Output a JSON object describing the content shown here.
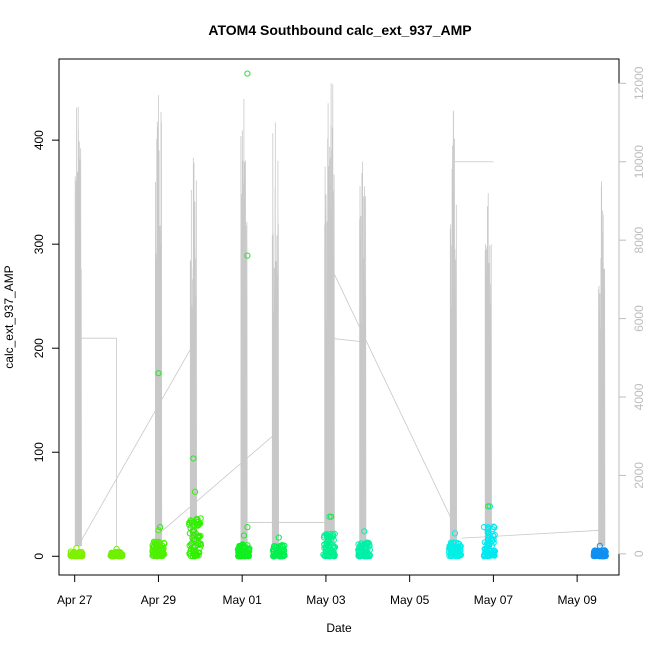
{
  "chart_data": {
    "type": "scatter",
    "title": "ATOM4 Southbound calc_ext_937_AMP",
    "xlabel": "Date",
    "ylabel": "calc_ext_937_AMP",
    "x_ticks": [
      "Apr 27",
      "Apr 29",
      "May 01",
      "May 03",
      "May 05",
      "May 07",
      "May 09"
    ],
    "y_ticks": [
      0,
      100,
      200,
      300,
      400
    ],
    "y2_ticks": [
      0,
      2000,
      4000,
      6000,
      8000,
      10000,
      12000
    ],
    "xlim": [
      "2014-04-26 15:00",
      "2014-05-10 00:00"
    ],
    "ylim": [
      -18,
      478
    ],
    "y2lim": [
      -540,
      12620
    ],
    "grid": false,
    "series": [
      {
        "values_axis": "left",
        "style": "open-circles",
        "clusters": [
          {
            "x": "2014-04-27 01:00",
            "y_max": 8,
            "color": "#7ff000"
          },
          {
            "x": "2014-04-28 00:00",
            "y_max": 7,
            "color": "#70f000"
          },
          {
            "x": "2014-04-29 00:00",
            "y_max": 25,
            "color": "#4df000"
          },
          {
            "x": "2014-04-29 21:00",
            "y_max": 62,
            "color": "#30f000"
          },
          {
            "x": "2014-05-01 01:00",
            "y_max": 20,
            "color": "#10f020"
          },
          {
            "x": "2014-05-01 21:00",
            "y_max": 18,
            "color": "#00f050"
          },
          {
            "x": "2014-05-03 02:00",
            "y_max": 38,
            "color": "#00f090"
          },
          {
            "x": "2014-05-03 22:00",
            "y_max": 24,
            "color": "#00f0a8"
          },
          {
            "x": "2014-05-06 02:00",
            "y_max": 22,
            "color": "#00f0e8"
          },
          {
            "x": "2014-05-06 22:00",
            "y_max": 48,
            "color": "#00e8f0"
          },
          {
            "x": "2014-05-09 13:00",
            "y_max": 10,
            "color": "#1090f0"
          }
        ],
        "outliers": [
          {
            "x": "2014-04-29 00:00",
            "y": 176
          },
          {
            "x": "2014-04-29 01:00",
            "y": 28
          },
          {
            "x": "2014-04-29 20:00",
            "y": 94
          },
          {
            "x": "2014-05-01 03:00",
            "y": 464
          },
          {
            "x": "2014-05-01 03:00",
            "y": 289
          },
          {
            "x": "2014-05-01 03:00",
            "y": 28
          },
          {
            "x": "2014-05-03 03:00",
            "y": 38
          },
          {
            "x": "2014-05-06 21:00",
            "y": 48
          }
        ]
      },
      {
        "values_axis": "right",
        "style": "line",
        "color": "#c8c8c8",
        "peaks": [
          {
            "x": "2014-04-27 02:00",
            "y": 11400
          },
          {
            "x": "2014-04-29 00:00",
            "y": 11700
          },
          {
            "x": "2014-04-29 20:00",
            "y": 10100
          },
          {
            "x": "2014-05-01 01:00",
            "y": 11600
          },
          {
            "x": "2014-05-01 19:00",
            "y": 11000
          },
          {
            "x": "2014-05-03 01:00",
            "y": 10600
          },
          {
            "x": "2014-05-03 03:00",
            "y": 12000
          },
          {
            "x": "2014-05-03 21:00",
            "y": 10000
          },
          {
            "x": "2014-05-06 01:00",
            "y": 11300
          },
          {
            "x": "2014-05-06 21:00",
            "y": 9200
          },
          {
            "x": "2014-05-09 14:00",
            "y": 9500
          }
        ]
      }
    ]
  }
}
